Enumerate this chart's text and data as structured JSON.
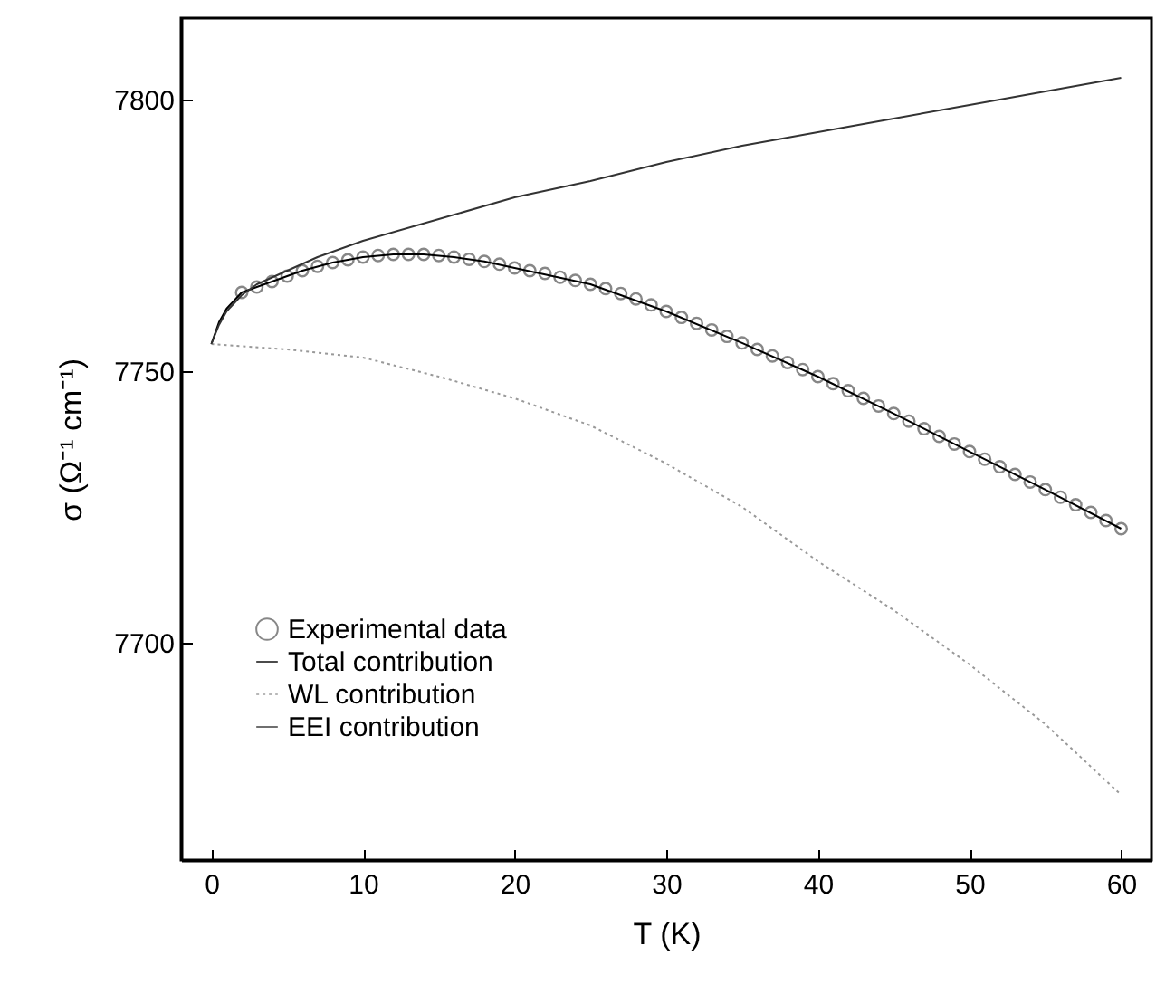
{
  "chart_data": {
    "type": "line",
    "xlabel": "T (K)",
    "ylabel": "σ (Ω⁻¹ cm⁻¹)",
    "xlim": [
      -2,
      62
    ],
    "ylim": [
      7660,
      7815
    ],
    "xticks": [
      0,
      10,
      20,
      30,
      40,
      50,
      60
    ],
    "yticks": [
      7700,
      7750,
      7800
    ],
    "legend": "bottom left",
    "series": [
      {
        "name": "Experimental data",
        "type": "scatter",
        "marker": "circle",
        "color": "#555555",
        "x": [
          2,
          3,
          4,
          5,
          6,
          7,
          8,
          9,
          10,
          11,
          12,
          13,
          14,
          15,
          16,
          17,
          18,
          19,
          20,
          21,
          22,
          23,
          24,
          25,
          26,
          27,
          28,
          29,
          30,
          31,
          32,
          33,
          34,
          35,
          36,
          37,
          38,
          39,
          40,
          41,
          42,
          43,
          44,
          45,
          46,
          47,
          48,
          49,
          50,
          51,
          52,
          53,
          54,
          55,
          56,
          57,
          58,
          59,
          60
        ],
        "values": [
          7764.5,
          7765.5,
          7766.5,
          7767.5,
          7768.5,
          7769.3,
          7770,
          7770.5,
          7771,
          7771.3,
          7771.5,
          7771.5,
          7771.5,
          7771.3,
          7771,
          7770.6,
          7770.2,
          7769.7,
          7769,
          7768.5,
          7768,
          7767.3,
          7766.7,
          7766,
          7765.2,
          7764.3,
          7763.3,
          7762.2,
          7761,
          7759.9,
          7758.8,
          7757.6,
          7756.4,
          7755.2,
          7754,
          7752.8,
          7751.6,
          7750.3,
          7749,
          7747.7,
          7746.4,
          7745,
          7743.6,
          7742.2,
          7740.8,
          7739.4,
          7738,
          7736.6,
          7735.2,
          7733.8,
          7732.4,
          7731,
          7729.6,
          7728.2,
          7726.8,
          7725.4,
          7724,
          7722.5,
          7721
        ]
      },
      {
        "name": "Total contribution",
        "type": "line",
        "line_style": "solid",
        "color": "#000000",
        "x": [
          0,
          0.5,
          1,
          2,
          4,
          6,
          8,
          10,
          12,
          14,
          16,
          18,
          20,
          25,
          30,
          35,
          40,
          45,
          50,
          55,
          60
        ],
        "values": [
          7755,
          7759,
          7761.5,
          7764.5,
          7766.5,
          7768.5,
          7770,
          7771,
          7771.5,
          7771.5,
          7771,
          7770.2,
          7769,
          7766,
          7761,
          7755.2,
          7749,
          7742.2,
          7735.2,
          7728.2,
          7721
        ]
      },
      {
        "name": "WL contribution",
        "type": "line",
        "line_style": "dotted",
        "color": "#999999",
        "x": [
          0,
          5,
          10,
          15,
          20,
          25,
          30,
          35,
          40,
          45,
          50,
          55,
          60
        ],
        "values": [
          7755,
          7754,
          7752.5,
          7749,
          7745,
          7740,
          7733,
          7725,
          7715,
          7706,
          7696,
          7685,
          7672
        ]
      },
      {
        "name": "EEI contribution",
        "type": "line",
        "line_style": "solid",
        "color": "#333333",
        "x": [
          0,
          0.5,
          1,
          2,
          3,
          5,
          7,
          10,
          15,
          20,
          25,
          30,
          35,
          40,
          45,
          50,
          55,
          60
        ],
        "values": [
          7755,
          7758.5,
          7761,
          7764,
          7766,
          7768.5,
          7771,
          7774,
          7778,
          7782,
          7785,
          7788.5,
          7791.5,
          7794,
          7796.5,
          7799,
          7801.5,
          7804
        ]
      }
    ]
  }
}
